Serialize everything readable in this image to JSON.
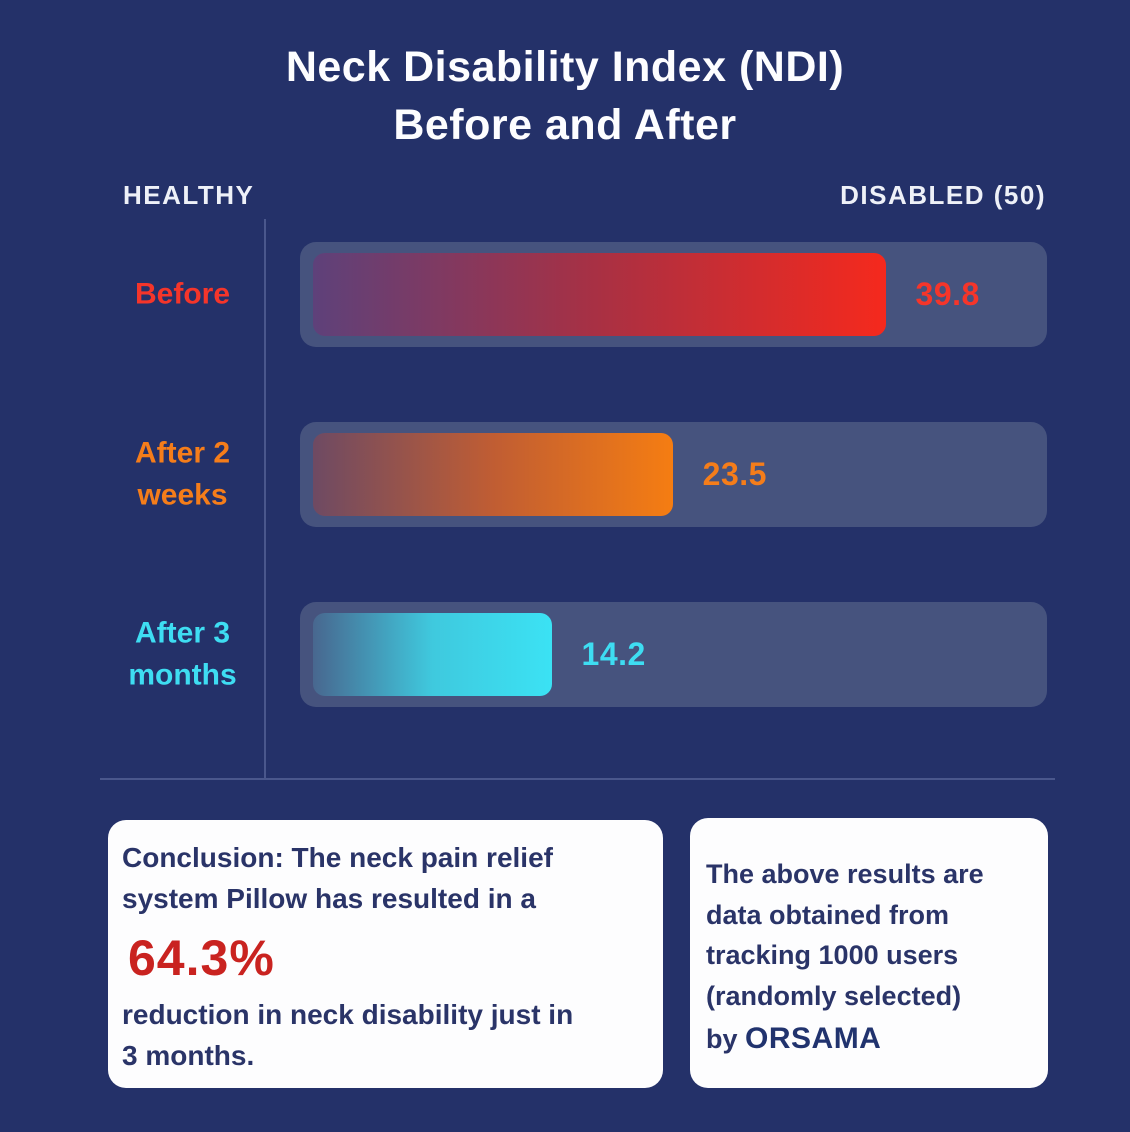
{
  "header": {
    "title": "Neck Disability Index (NDI)\nBefore and After"
  },
  "chart_data": {
    "type": "bar",
    "orientation": "horizontal",
    "title": "Neck Disability Index (NDI) Before and After",
    "categories": [
      "Before",
      "After 2 weeks",
      "After 3 months"
    ],
    "values": [
      39.8,
      23.5,
      14.2
    ],
    "xlim": [
      0,
      50
    ],
    "grid": false,
    "axis_endpoints": {
      "left": "HEALTHY",
      "right": "DISABLED (50)"
    },
    "rows": [
      {
        "label": "Before",
        "value": 39.8,
        "value_label": "39.8",
        "display_pct": 78,
        "color": "#F5352A",
        "gradient": [
          "#5E417A",
          "#A93043",
          "#F5291D"
        ]
      },
      {
        "label": "After 2\nweeks",
        "value": 23.5,
        "value_label": "23.5",
        "display_pct": 49,
        "color": "#F57D1A",
        "gradient": [
          "#6E4A63",
          "#C05D33",
          "#F57D12"
        ]
      },
      {
        "label": "After 3\nmonths",
        "value": 14.2,
        "value_label": "14.2",
        "display_pct": 32.5,
        "color": "#3EDDF2",
        "gradient": [
          "#48678F",
          "#3FC9DE",
          "#3BE2F4"
        ]
      }
    ]
  },
  "conclusion_card": {
    "intro": "Conclusion: The neck pain relief\nsystem Pillow has resulted in a",
    "highlight": "64.3%",
    "outro": "reduction in neck disability just in\n3 months."
  },
  "source_card": {
    "text": "The above results are\ndata obtained from\ntracking 1000 users\n(randomly selected)\nby ",
    "brand": "ORSAMA"
  },
  "colors": {
    "background": "#243169",
    "track": "#46537E",
    "title_white": "#FDFDFF",
    "card_background": "#FDFDFE",
    "card_text": "#2A3468",
    "highlight_red": "#C92320",
    "brand_navy": "#21336E",
    "before_red": "#F5291D",
    "two_weeks_orange": "#F57D12",
    "three_months_cyan": "#3BE2F4"
  }
}
